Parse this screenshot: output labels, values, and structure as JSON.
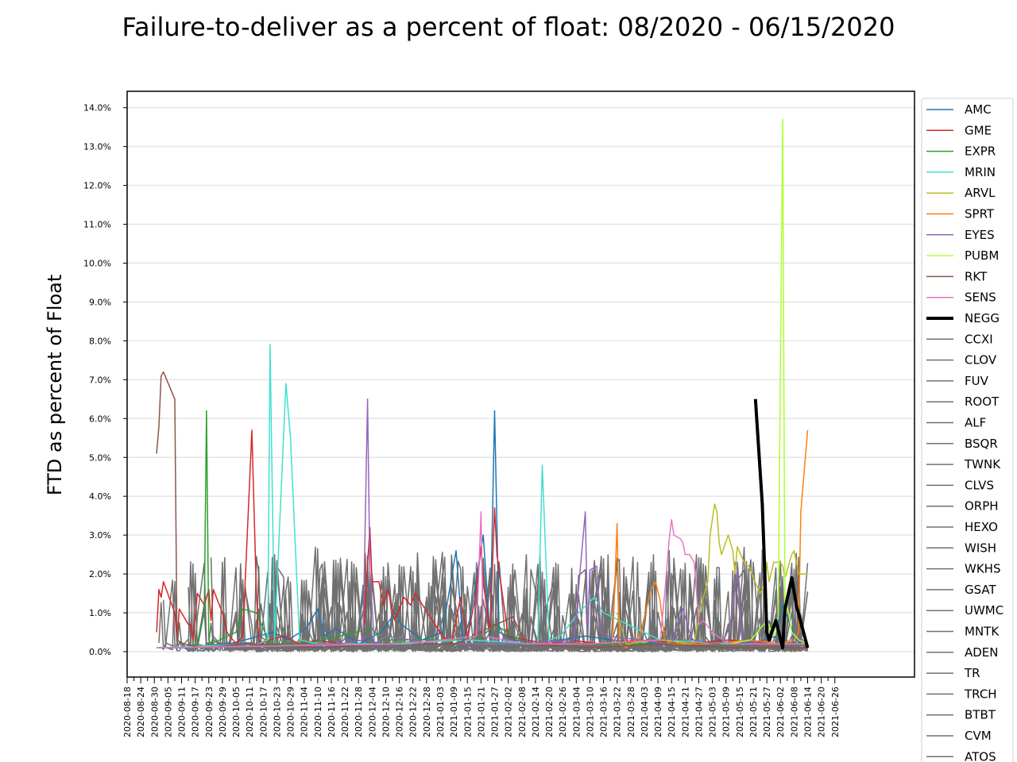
{
  "chart_data": {
    "type": "line",
    "title": "Failure-to-deliver as a percent of float: 08/2020 - 06/15/2020",
    "xlabel": "",
    "ylabel": "FTD as percent of Float",
    "ylim": [
      0,
      14.0
    ],
    "yticks": [
      "0.0%",
      "1.0%",
      "2.0%",
      "3.0%",
      "4.0%",
      "5.0%",
      "6.0%",
      "7.0%",
      "8.0%",
      "9.0%",
      "10.0%",
      "11.0%",
      "12.0%",
      "13.0%",
      "14.0%"
    ],
    "xlim": [
      "2020-08-18",
      "2021-06-26"
    ],
    "xticks": [
      "2020-08-18",
      "2020-08-24",
      "2020-08-30",
      "2020-09-05",
      "2020-09-11",
      "2020-09-17",
      "2020-09-23",
      "2020-09-29",
      "2020-10-05",
      "2020-10-11",
      "2020-10-17",
      "2020-10-23",
      "2020-10-29",
      "2020-11-04",
      "2020-11-10",
      "2020-11-16",
      "2020-11-22",
      "2020-11-28",
      "2020-12-04",
      "2020-12-10",
      "2020-12-16",
      "2020-12-22",
      "2020-12-28",
      "2021-01-03",
      "2021-01-09",
      "2021-01-15",
      "2021-01-21",
      "2021-01-27",
      "2021-02-02",
      "2021-02-08",
      "2021-02-14",
      "2021-02-20",
      "2021-02-26",
      "2021-03-04",
      "2021-03-10",
      "2021-03-16",
      "2021-03-22",
      "2021-03-28",
      "2021-04-03",
      "2021-04-09",
      "2021-04-15",
      "2021-04-21",
      "2021-04-27",
      "2021-05-03",
      "2021-05-09",
      "2021-05-15",
      "2021-05-21",
      "2021-05-27",
      "2021-06-02",
      "2021-06-08",
      "2021-06-14",
      "2021-06-20",
      "2021-06-26"
    ],
    "grid": "horizontal",
    "legend_position": "right",
    "series": [
      {
        "name": "AMC",
        "color": "#1f77b4",
        "x": [
          "2020-08-31",
          "2020-09-08",
          "2020-09-16",
          "2020-09-24",
          "2020-10-02",
          "2020-10-12",
          "2020-10-21",
          "2020-10-28",
          "2020-11-05",
          "2020-11-10",
          "2020-11-13",
          "2020-11-18",
          "2020-11-28",
          "2020-12-08",
          "2020-12-14",
          "2020-12-17",
          "2020-12-26",
          "2021-01-04",
          "2021-01-10",
          "2021-01-13",
          "2021-01-16",
          "2021-01-22",
          "2021-01-25",
          "2021-01-27",
          "2021-01-29",
          "2021-02-05",
          "2021-02-15",
          "2021-02-25",
          "2021-03-08",
          "2021-03-20",
          "2021-04-02",
          "2021-04-15",
          "2021-04-25",
          "2021-05-08",
          "2021-05-20",
          "2021-05-31",
          "2021-06-03",
          "2021-06-09",
          "2021-06-14"
        ],
        "values": [
          0.1,
          0.1,
          0.1,
          0.15,
          0.2,
          0.35,
          0.5,
          0.3,
          0.6,
          1.1,
          0.4,
          0.6,
          0.2,
          0.5,
          1.0,
          0.7,
          0.3,
          0.5,
          2.6,
          0.3,
          0.8,
          3.0,
          0.4,
          6.2,
          0.5,
          0.3,
          0.2,
          0.3,
          0.4,
          0.3,
          0.2,
          0.3,
          0.2,
          0.3,
          0.2,
          0.4,
          1.2,
          0.3,
          0.2
        ]
      },
      {
        "name": "GME",
        "color": "#d62728",
        "x": [
          "2020-08-31",
          "2020-09-01",
          "2020-09-02",
          "2020-09-03",
          "2020-09-08",
          "2020-09-09",
          "2020-09-10",
          "2020-09-14",
          "2020-09-15",
          "2020-09-16",
          "2020-09-18",
          "2020-09-21",
          "2020-09-23",
          "2020-09-24",
          "2020-09-25",
          "2020-09-29",
          "2020-10-01",
          "2020-10-05",
          "2020-10-08",
          "2020-10-12",
          "2020-10-14",
          "2020-10-15",
          "2020-10-16",
          "2020-10-20",
          "2020-10-26",
          "2020-11-02",
          "2020-11-10",
          "2020-11-20",
          "2020-11-30",
          "2020-12-03",
          "2020-12-04",
          "2020-12-07",
          "2020-12-09",
          "2020-12-11",
          "2020-12-14",
          "2020-12-18",
          "2020-12-21",
          "2020-12-23",
          "2021-01-04",
          "2021-01-08",
          "2021-01-12",
          "2021-01-15",
          "2021-01-19",
          "2021-01-21",
          "2021-01-22",
          "2021-01-25",
          "2021-01-27",
          "2021-01-28",
          "2021-02-02",
          "2021-02-10",
          "2021-02-20",
          "2021-03-01",
          "2021-03-15",
          "2021-04-01",
          "2021-04-20",
          "2021-05-10",
          "2021-06-01",
          "2021-06-14"
        ],
        "values": [
          0.5,
          1.6,
          1.4,
          1.8,
          1.0,
          0.3,
          1.1,
          0.7,
          0.7,
          0.3,
          1.5,
          1.2,
          1.6,
          0.8,
          1.6,
          1.0,
          0.5,
          0.2,
          0.4,
          5.7,
          1.5,
          0.3,
          0.2,
          0.3,
          0.4,
          0.2,
          0.3,
          0.2,
          0.3,
          3.2,
          1.8,
          1.8,
          1.2,
          1.6,
          0.8,
          1.4,
          1.2,
          1.5,
          0.4,
          0.2,
          1.4,
          0.3,
          1.6,
          2.7,
          1.8,
          0.5,
          3.7,
          2.5,
          0.4,
          0.3,
          0.2,
          0.3,
          0.2,
          0.3,
          0.2,
          0.3,
          0.2,
          0.2
        ]
      },
      {
        "name": "EXPR",
        "color": "#2ca02c",
        "x": [
          "2020-08-31",
          "2020-09-10",
          "2020-09-18",
          "2020-09-21",
          "2020-09-22",
          "2020-09-23",
          "2020-09-24",
          "2020-10-05",
          "2020-10-08",
          "2020-10-14",
          "2020-10-20",
          "2020-11-05",
          "2020-12-04",
          "2020-12-08",
          "2021-01-20",
          "2021-01-27",
          "2021-02-10",
          "2021-03-10",
          "2021-04-10",
          "2021-05-10",
          "2021-06-14"
        ],
        "values": [
          0.1,
          0.1,
          0.2,
          1.0,
          6.2,
          0.3,
          0.2,
          0.5,
          1.1,
          1.0,
          0.2,
          0.2,
          0.6,
          0.3,
          0.3,
          0.7,
          0.2,
          0.2,
          0.2,
          0.2,
          0.2
        ]
      },
      {
        "name": "MRIN",
        "color": "#40e0d0",
        "x": [
          "2020-08-31",
          "2020-10-15",
          "2020-10-19",
          "2020-10-20",
          "2020-10-22",
          "2020-10-26",
          "2020-10-27",
          "2020-10-29",
          "2020-11-02",
          "2020-11-10",
          "2020-12-10",
          "2021-01-15",
          "2021-02-15",
          "2021-02-17",
          "2021-02-20",
          "2021-02-25",
          "2021-03-05",
          "2021-03-12",
          "2021-03-16",
          "2021-04-10",
          "2021-05-10",
          "2021-06-14"
        ],
        "values": [
          0.1,
          0.2,
          0.3,
          7.9,
          0.3,
          5.6,
          6.9,
          5.5,
          0.3,
          0.2,
          0.2,
          0.3,
          0.2,
          4.8,
          0.3,
          0.4,
          1.0,
          1.4,
          1.0,
          0.3,
          0.2,
          0.2
        ]
      },
      {
        "name": "ARVL",
        "color": "#bcbd22",
        "x": [
          "2021-03-22",
          "2021-03-26",
          "2021-04-10",
          "2021-04-25",
          "2021-04-28",
          "2021-05-01",
          "2021-05-02",
          "2021-05-04",
          "2021-05-05",
          "2021-05-06",
          "2021-05-07",
          "2021-05-10",
          "2021-05-12",
          "2021-05-13",
          "2021-05-14",
          "2021-05-17",
          "2021-05-19",
          "2021-05-24",
          "2021-05-26",
          "2021-05-27",
          "2021-05-28",
          "2021-05-30",
          "2021-06-02",
          "2021-06-03",
          "2021-06-04",
          "2021-06-07",
          "2021-06-08",
          "2021-06-10",
          "2021-06-14"
        ],
        "values": [
          1.0,
          0.2,
          0.3,
          0.2,
          1.2,
          1.8,
          3.0,
          3.8,
          3.6,
          2.8,
          2.5,
          3.0,
          2.6,
          2.0,
          2.7,
          2.3,
          2.2,
          1.5,
          1.7,
          2.3,
          1.8,
          2.3,
          2.3,
          2.2,
          1.9,
          2.5,
          2.6,
          2.0,
          2.0
        ]
      },
      {
        "name": "SPRT",
        "color": "#ff7f0e",
        "x": [
          "2021-03-20",
          "2021-03-22",
          "2021-03-23",
          "2021-03-26",
          "2021-04-01",
          "2021-04-06",
          "2021-04-08",
          "2021-04-10",
          "2021-04-12",
          "2021-04-15",
          "2021-05-01",
          "2021-05-20",
          "2021-06-01",
          "2021-06-08",
          "2021-06-10",
          "2021-06-11",
          "2021-06-14"
        ],
        "values": [
          0.2,
          3.3,
          0.2,
          0.1,
          0.4,
          1.6,
          1.8,
          1.3,
          0.3,
          0.2,
          0.2,
          0.3,
          0.2,
          0.3,
          0.5,
          3.6,
          5.7
        ]
      },
      {
        "name": "EYES",
        "color": "#9467bd",
        "x": [
          "2020-08-31",
          "2020-09-15",
          "2020-11-20",
          "2020-11-30",
          "2020-12-02",
          "2020-12-03",
          "2020-12-05",
          "2020-12-10",
          "2021-01-01",
          "2021-02-10",
          "2021-03-03",
          "2021-03-08",
          "2021-03-09",
          "2021-03-10",
          "2021-03-13",
          "2021-03-15",
          "2021-03-18",
          "2021-04-15",
          "2021-04-20",
          "2021-04-24",
          "2021-05-05",
          "2021-05-10",
          "2021-05-14",
          "2021-05-16",
          "2021-05-25",
          "2021-06-14"
        ],
        "values": [
          0.1,
          0.1,
          0.2,
          0.3,
          6.5,
          2.1,
          0.2,
          0.4,
          0.2,
          0.2,
          0.3,
          3.6,
          0.5,
          2.1,
          2.2,
          0.5,
          0.4,
          0.2,
          1.1,
          0.3,
          0.2,
          0.3,
          2.1,
          0.3,
          0.2,
          0.2
        ]
      },
      {
        "name": "PUBM",
        "color": "#adff2f",
        "x": [
          "2021-05-10",
          "2021-05-20",
          "2021-05-27",
          "2021-05-30",
          "2021-06-01",
          "2021-06-03",
          "2021-06-04",
          "2021-06-05",
          "2021-06-07",
          "2021-06-10",
          "2021-06-14"
        ],
        "values": [
          0.2,
          0.3,
          0.8,
          0.4,
          0.9,
          13.7,
          0.8,
          1.2,
          0.5,
          0.3,
          0.2
        ]
      },
      {
        "name": "RKT",
        "color": "#8c564b",
        "x": [
          "2020-08-31",
          "2020-09-01",
          "2020-09-02",
          "2020-09-03",
          "2020-09-08",
          "2020-09-09",
          "2020-09-12",
          "2020-09-20",
          "2020-10-10",
          "2020-11-10",
          "2020-12-10",
          "2021-01-10",
          "2021-02-04",
          "2021-02-10",
          "2021-03-10",
          "2021-04-10",
          "2021-05-10",
          "2021-06-14"
        ],
        "values": [
          5.1,
          5.8,
          7.1,
          7.2,
          6.5,
          0.3,
          0.2,
          0.1,
          0.2,
          0.1,
          0.2,
          0.2,
          0.9,
          0.2,
          0.1,
          0.2,
          0.1,
          0.1
        ]
      },
      {
        "name": "SENS",
        "color": "#e377c2",
        "x": [
          "2020-08-31",
          "2020-12-20",
          "2021-01-19",
          "2021-01-21",
          "2021-01-22",
          "2021-02-10",
          "2021-03-10",
          "2021-04-10",
          "2021-04-12",
          "2021-04-14",
          "2021-04-15",
          "2021-04-16",
          "2021-04-19",
          "2021-04-20",
          "2021-04-21",
          "2021-04-23",
          "2021-04-25",
          "2021-04-27",
          "2021-04-29",
          "2021-05-03",
          "2021-05-10",
          "2021-06-14"
        ],
        "values": [
          0.1,
          0.2,
          0.4,
          3.6,
          0.4,
          0.2,
          0.2,
          0.3,
          1.5,
          2.9,
          3.4,
          3.0,
          2.9,
          2.8,
          2.5,
          2.5,
          2.3,
          0.7,
          0.8,
          0.5,
          0.2,
          0.2
        ]
      },
      {
        "name": "NEGG",
        "color": "#000000",
        "bold": true,
        "x": [
          "2021-05-22",
          "2021-05-25",
          "2021-05-26",
          "2021-05-27",
          "2021-05-28",
          "2021-05-31",
          "2021-06-03",
          "2021-06-04",
          "2021-06-07",
          "2021-06-09",
          "2021-06-14"
        ],
        "values": [
          6.5,
          3.8,
          2.2,
          0.5,
          0.3,
          0.8,
          0.1,
          1.1,
          1.9,
          1.2,
          0.1
        ]
      },
      {
        "name": "CCXI",
        "color": "#707070"
      },
      {
        "name": "CLOV",
        "color": "#707070"
      },
      {
        "name": "FUV",
        "color": "#707070"
      },
      {
        "name": "ROOT",
        "color": "#707070"
      },
      {
        "name": "ALF",
        "color": "#707070"
      },
      {
        "name": "BSQR",
        "color": "#707070"
      },
      {
        "name": "TWNK",
        "color": "#707070"
      },
      {
        "name": "CLVS",
        "color": "#707070"
      },
      {
        "name": "ORPH",
        "color": "#707070"
      },
      {
        "name": "HEXO",
        "color": "#707070"
      },
      {
        "name": "WISH",
        "color": "#707070"
      },
      {
        "name": "WKHS",
        "color": "#707070"
      },
      {
        "name": "GSAT",
        "color": "#707070"
      },
      {
        "name": "UWMC",
        "color": "#707070"
      },
      {
        "name": "MNTK",
        "color": "#707070"
      },
      {
        "name": "ADEN",
        "color": "#707070"
      },
      {
        "name": "TR",
        "color": "#707070"
      },
      {
        "name": "TRCH",
        "color": "#707070"
      },
      {
        "name": "BTBT",
        "color": "#707070"
      },
      {
        "name": "CVM",
        "color": "#707070"
      },
      {
        "name": "ATOS",
        "color": "#707070"
      }
    ]
  }
}
